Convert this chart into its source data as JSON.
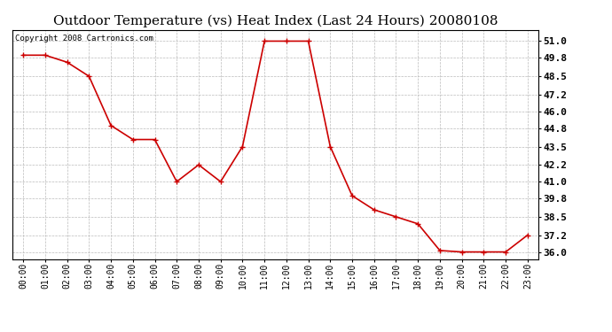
{
  "title": "Outdoor Temperature (vs) Heat Index (Last 24 Hours) 20080108",
  "copyright": "Copyright 2008 Cartronics.com",
  "x_labels": [
    "00:00",
    "01:00",
    "02:00",
    "03:00",
    "04:00",
    "05:00",
    "06:00",
    "07:00",
    "08:00",
    "09:00",
    "10:00",
    "11:00",
    "12:00",
    "13:00",
    "14:00",
    "15:00",
    "16:00",
    "17:00",
    "18:00",
    "19:00",
    "20:00",
    "21:00",
    "22:00",
    "23:00"
  ],
  "y_values": [
    50.0,
    50.0,
    49.5,
    48.5,
    45.0,
    44.0,
    44.0,
    41.0,
    42.2,
    41.0,
    43.5,
    51.0,
    51.0,
    51.0,
    43.5,
    40.0,
    39.0,
    38.5,
    38.0,
    36.1,
    36.0,
    36.0,
    36.0,
    37.2
  ],
  "line_color": "#cc0000",
  "marker": "+",
  "marker_size": 5,
  "marker_linewidth": 1.0,
  "line_width": 1.2,
  "ylim": [
    35.5,
    51.8
  ],
  "yticks": [
    36.0,
    37.2,
    38.5,
    39.8,
    41.0,
    42.2,
    43.5,
    44.8,
    46.0,
    47.2,
    48.5,
    49.8,
    51.0
  ],
  "background_color": "#ffffff",
  "grid_color": "#bbbbbb",
  "title_fontsize": 11,
  "copyright_fontsize": 6.5,
  "tick_fontsize": 7,
  "ytick_fontsize": 8
}
